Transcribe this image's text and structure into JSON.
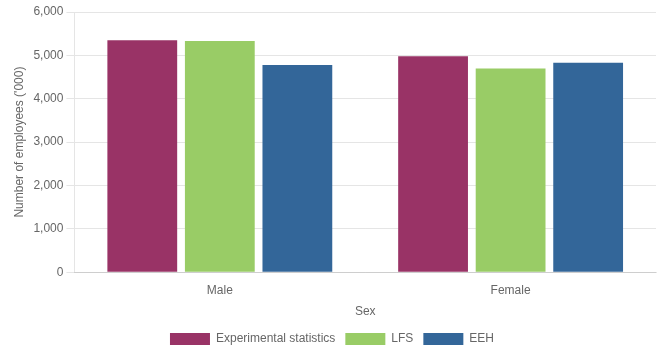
{
  "chart_data": {
    "type": "bar",
    "categories": [
      "Male",
      "Female"
    ],
    "series": [
      {
        "name": "Experimental statistics",
        "color": "#993366",
        "values": [
          5350,
          4980
        ]
      },
      {
        "name": "LFS",
        "color": "#99cc66",
        "values": [
          5330,
          4700
        ]
      },
      {
        "name": "EEH",
        "color": "#336699",
        "values": [
          4780,
          4830
        ]
      }
    ],
    "xlabel": "Sex",
    "ylabel": "Number of employees ('000)",
    "ylim": [
      0,
      6000
    ],
    "yticks": [
      0,
      {
        "value": 1000,
        "label": "1,000"
      },
      {
        "value": 2000,
        "label": "2,000"
      },
      {
        "value": 3000,
        "label": "3,000"
      },
      {
        "value": 4000,
        "label": "4,000"
      },
      {
        "value": 5000,
        "label": "5,000"
      },
      {
        "value": 6000,
        "label": "6,000"
      }
    ],
    "grid": true,
    "legend": "bottom"
  }
}
